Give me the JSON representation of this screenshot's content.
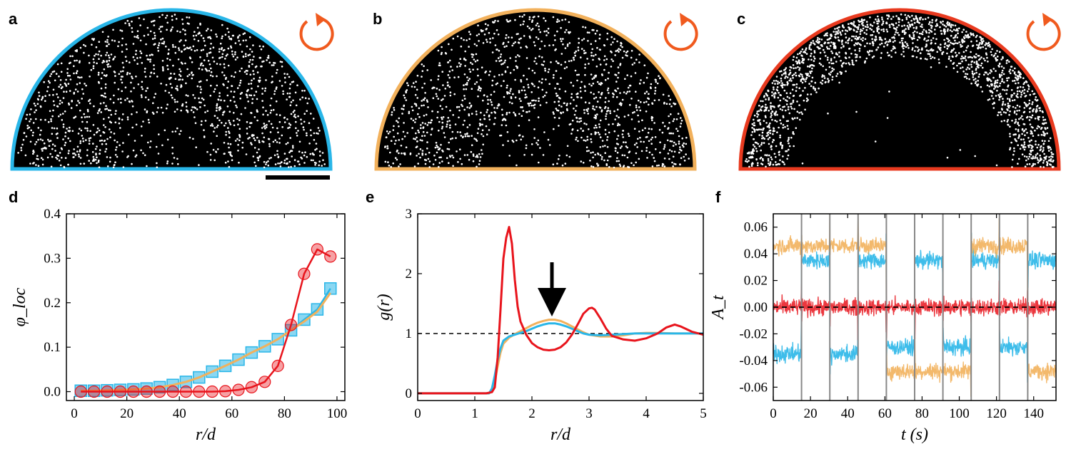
{
  "colors": {
    "blue": "#29b6e8",
    "orange": "#f2b15c",
    "red": "#e83a1f",
    "red_line": "#e8141c",
    "rotation_arrow": "#f05a1e"
  },
  "panels": {
    "a": {
      "label": "a",
      "border_color": "#29b6e8",
      "description": "particles spread with dense region near rim"
    },
    "b": {
      "label": "b",
      "border_color": "#f2b15c"
    },
    "c": {
      "label": "c",
      "border_color": "#e83a1f"
    },
    "d": {
      "label": "d"
    },
    "e": {
      "label": "e"
    },
    "f": {
      "label": "f"
    }
  },
  "chart_data": [
    {
      "id": "d",
      "type": "line",
      "xlabel": "r/d",
      "ylabel": "φ_loc",
      "xlim": [
        -3,
        103
      ],
      "ylim": [
        -0.02,
        0.4
      ],
      "xticks": [
        "0",
        "20",
        "40",
        "60",
        "80",
        "100"
      ],
      "yticks": [
        "0.0",
        "0.1",
        "0.2",
        "0.3",
        "0.4"
      ],
      "x": [
        2.5,
        7.5,
        12.5,
        17.5,
        22.5,
        27.5,
        32.5,
        37.5,
        42.5,
        47.5,
        52.5,
        57.5,
        62.5,
        67.5,
        72.5,
        77.5,
        82.5,
        87.5,
        92.5,
        97.5
      ],
      "series": [
        {
          "name": "blue",
          "marker": "square",
          "values": [
            0.002,
            0.002,
            0.003,
            0.004,
            0.005,
            0.007,
            0.01,
            0.015,
            0.022,
            0.032,
            0.045,
            0.058,
            0.072,
            0.088,
            0.102,
            0.118,
            0.138,
            0.162,
            0.185,
            0.232
          ]
        },
        {
          "name": "orange",
          "marker": "line",
          "values": [
            0.002,
            0.002,
            0.003,
            0.004,
            0.005,
            0.007,
            0.01,
            0.015,
            0.022,
            0.032,
            0.045,
            0.058,
            0.072,
            0.088,
            0.102,
            0.118,
            0.138,
            0.158,
            0.18,
            0.222
          ]
        },
        {
          "name": "red",
          "marker": "circle",
          "values": [
            0.0,
            0.0,
            0.0,
            0.0,
            0.0,
            0.0,
            0.0,
            0.0,
            0.0,
            0.0,
            0.0,
            0.001,
            0.004,
            0.01,
            0.022,
            0.058,
            0.15,
            0.265,
            0.32,
            0.304
          ]
        }
      ]
    },
    {
      "id": "e",
      "type": "line",
      "xlabel": "r/d",
      "ylabel": "g(r)",
      "xlim": [
        0,
        5
      ],
      "ylim": [
        -0.12,
        3
      ],
      "xticks": [
        "0",
        "1",
        "2",
        "3",
        "4",
        "5"
      ],
      "yticks": [
        "0",
        "1",
        "2",
        "3"
      ],
      "reference_line": 1,
      "annotation": "arrow at r/d ≈ 2.3 pointing to second peak",
      "series": [
        {
          "name": "blue",
          "x": [
            0,
            1.25,
            1.3,
            1.35,
            1.4,
            1.45,
            1.5,
            1.6,
            1.7,
            1.8,
            1.9,
            2.0,
            2.1,
            2.2,
            2.3,
            2.4,
            2.5,
            2.6,
            2.7,
            2.8,
            2.9,
            3.0,
            3.2,
            3.4,
            3.6,
            3.8,
            4.0,
            4.2,
            4.5,
            4.8,
            5.0
          ],
          "values": [
            0,
            0,
            0.08,
            0.3,
            0.56,
            0.75,
            0.88,
            0.95,
            0.98,
            1.01,
            1.04,
            1.08,
            1.12,
            1.15,
            1.17,
            1.17,
            1.15,
            1.12,
            1.08,
            1.04,
            1.0,
            0.98,
            0.97,
            0.98,
            0.99,
            1.0,
            1.0,
            1.0,
            1.0,
            1.0,
            1.0
          ]
        },
        {
          "name": "orange",
          "x": [
            0,
            1.25,
            1.3,
            1.35,
            1.4,
            1.45,
            1.5,
            1.6,
            1.7,
            1.8,
            1.9,
            2.0,
            2.1,
            2.2,
            2.3,
            2.4,
            2.5,
            2.6,
            2.7,
            2.8,
            2.9,
            3.0,
            3.2,
            3.4,
            3.6,
            3.8,
            4.0,
            4.2,
            4.5,
            4.8,
            5.0
          ],
          "values": [
            0,
            0,
            0.05,
            0.2,
            0.45,
            0.68,
            0.83,
            0.93,
            0.99,
            1.04,
            1.09,
            1.14,
            1.18,
            1.21,
            1.23,
            1.23,
            1.21,
            1.17,
            1.12,
            1.07,
            1.02,
            0.98,
            0.95,
            0.95,
            0.97,
            1.0,
            1.01,
            1.01,
            1.0,
            1.0,
            1.0
          ]
        },
        {
          "name": "red",
          "x": [
            0,
            1.0,
            1.2,
            1.3,
            1.35,
            1.4,
            1.45,
            1.5,
            1.55,
            1.6,
            1.65,
            1.7,
            1.75,
            1.8,
            1.9,
            2.0,
            2.1,
            2.2,
            2.3,
            2.4,
            2.5,
            2.6,
            2.7,
            2.8,
            2.9,
            3.0,
            3.05,
            3.1,
            3.2,
            3.3,
            3.4,
            3.6,
            3.8,
            4.0,
            4.2,
            4.35,
            4.5,
            4.6,
            4.8,
            5.0
          ],
          "values": [
            0,
            0,
            0,
            0.02,
            0.1,
            0.6,
            1.4,
            2.25,
            2.6,
            2.78,
            2.5,
            1.9,
            1.45,
            1.2,
            0.98,
            0.84,
            0.77,
            0.73,
            0.72,
            0.73,
            0.77,
            0.85,
            0.98,
            1.15,
            1.33,
            1.42,
            1.43,
            1.4,
            1.25,
            1.08,
            0.96,
            0.9,
            0.88,
            0.92,
            1.0,
            1.1,
            1.15,
            1.12,
            1.03,
            0.98
          ]
        }
      ]
    },
    {
      "id": "f",
      "type": "line",
      "xlabel": "t (s)",
      "ylabel": "A_t",
      "xlim": [
        0,
        152
      ],
      "ylim": [
        -0.07,
        0.07
      ],
      "xticks": [
        "0",
        "20",
        "40",
        "60",
        "80",
        "100",
        "120",
        "140"
      ],
      "yticks": [
        "0.06",
        "0.04",
        "0.02",
        "0.00",
        "-0.02",
        "-0.04",
        "-0.06"
      ],
      "reference_line": 0,
      "switch_times": [
        15.2,
        30.4,
        45.6,
        60.8,
        76,
        91.2,
        106.4,
        121.6,
        136.8
      ],
      "series": [
        {
          "name": "blue",
          "segment_levels": [
            -0.035,
            0.035,
            -0.035,
            0.035,
            -0.03,
            0.035,
            -0.03,
            0.035,
            -0.03,
            0.035
          ],
          "noise": 0.006
        },
        {
          "name": "orange",
          "segment_levels": [
            0.046,
            0.046,
            0.046,
            0.046,
            -0.048,
            -0.048,
            -0.048,
            0.046,
            0.046,
            -0.048
          ],
          "noise": 0.006
        },
        {
          "name": "red",
          "segment_levels": [
            0,
            0,
            0,
            0,
            0,
            0,
            0,
            0,
            0,
            0
          ],
          "noise": 0.006
        }
      ]
    }
  ]
}
